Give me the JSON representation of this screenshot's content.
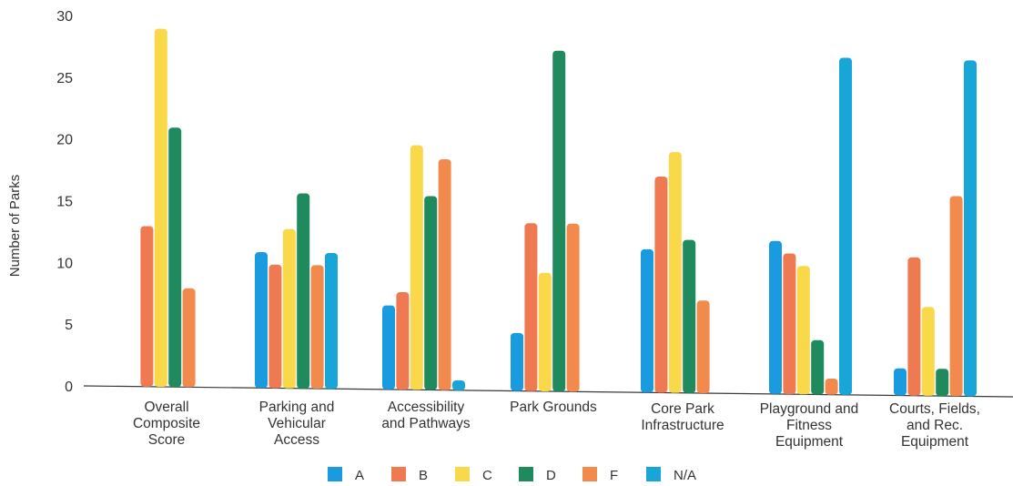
{
  "chart_data": {
    "type": "bar",
    "ylabel": "Number of Parks",
    "xlabel": "",
    "ylim": [
      0,
      30
    ],
    "yticks": [
      0,
      5,
      10,
      15,
      20,
      25,
      30
    ],
    "grid": false,
    "legend_position": "bottom",
    "categories": [
      [
        "Overall",
        "Composite",
        "Score"
      ],
      [
        "Parking and",
        "Vehicular",
        "Access"
      ],
      [
        "Accessibility",
        "and Pathways"
      ],
      [
        "Park Grounds"
      ],
      [
        "Core Park",
        "Infrastructure"
      ],
      [
        "Playground and",
        "Fitness",
        "Equipment"
      ],
      [
        "Courts, Fields,",
        "and Rec.",
        "Equipment"
      ]
    ],
    "series": [
      {
        "name": "A",
        "color": "#1a9be0",
        "values": [
          0,
          11,
          6.8,
          4.7,
          11.6,
          12.4,
          2.2
        ]
      },
      {
        "name": "B",
        "color": "#ef7a52",
        "values": [
          13,
          10,
          7.9,
          13.6,
          17.5,
          11.4,
          11.2
        ]
      },
      {
        "name": "C",
        "color": "#f9d94a",
        "values": [
          29,
          12.9,
          19.8,
          9.6,
          19.5,
          10.4,
          7.2
        ]
      },
      {
        "name": "D",
        "color": "#1f8a5e",
        "values": [
          21,
          15.8,
          15.7,
          27.6,
          12.4,
          4.4,
          2.2
        ]
      },
      {
        "name": "F",
        "color": "#f28a4e",
        "values": [
          8,
          10,
          18.7,
          13.6,
          7.5,
          1.3,
          16.2
        ]
      },
      {
        "name": "N/A",
        "color": "#18a6d8",
        "values": [
          0,
          11,
          0.8,
          0,
          0,
          27.3,
          27.2
        ]
      }
    ]
  }
}
